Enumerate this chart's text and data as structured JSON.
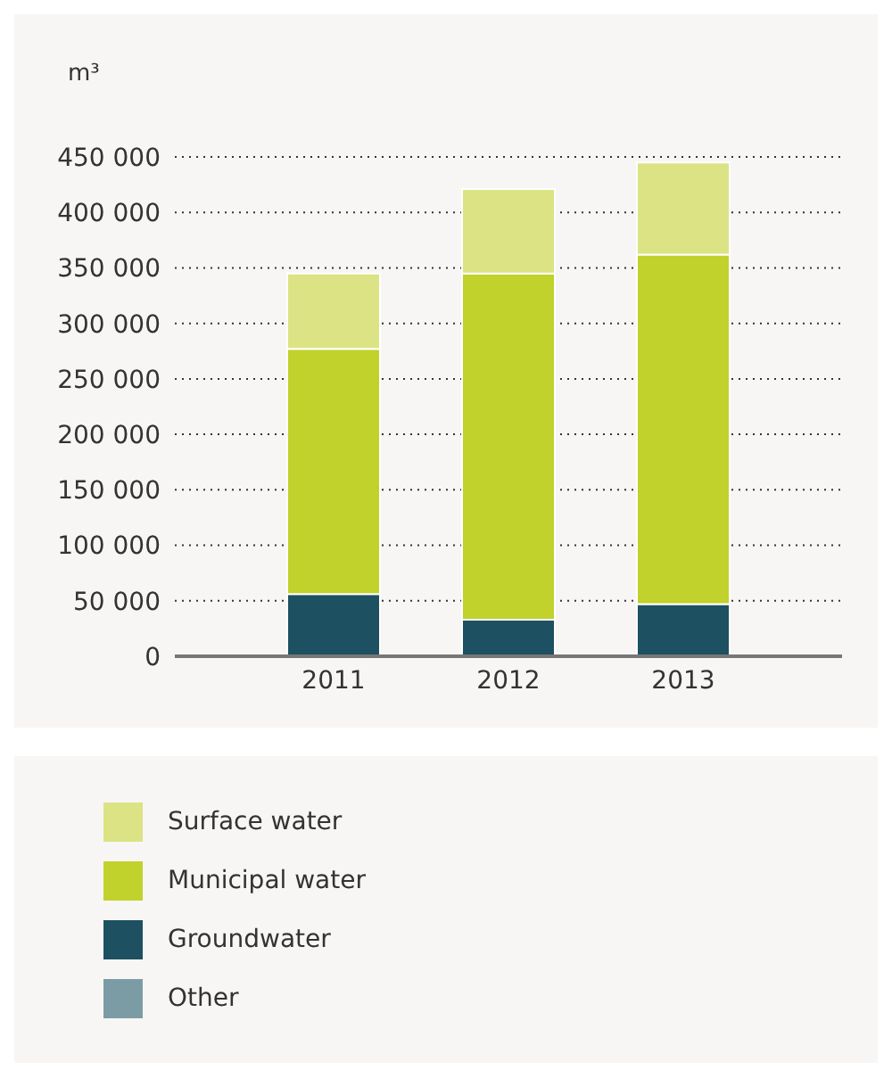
{
  "chart_data": {
    "type": "bar",
    "ylabel": "m³",
    "categories": [
      "2011",
      "2012",
      "2013"
    ],
    "stacked": true,
    "series": [
      {
        "name": "Other",
        "color": "#7b9ca5",
        "values": [
          0,
          0,
          0
        ]
      },
      {
        "name": "Groundwater",
        "color": "#1d5060",
        "values": [
          56000,
          33000,
          47000
        ]
      },
      {
        "name": "Municipal water",
        "color": "#c0d22b",
        "values": [
          221000,
          312000,
          315000
        ]
      },
      {
        "name": "Surface water",
        "color": "#dbe384",
        "values": [
          68000,
          76000,
          83000
        ]
      }
    ],
    "ylim": [
      0,
      450000
    ],
    "yticks": [
      {
        "value": 0,
        "label": "0"
      },
      {
        "value": 50000,
        "label": "50 000"
      },
      {
        "value": 100000,
        "label": "100 000"
      },
      {
        "value": 150000,
        "label": "150 000"
      },
      {
        "value": 200000,
        "label": "200 000"
      },
      {
        "value": 250000,
        "label": "250 000"
      },
      {
        "value": 300000,
        "label": "300 000"
      },
      {
        "value": 350000,
        "label": "350 000"
      },
      {
        "value": 400000,
        "label": "400 000"
      },
      {
        "value": 450000,
        "label": "450 000"
      }
    ],
    "grid": "y",
    "legend": "bottom"
  }
}
